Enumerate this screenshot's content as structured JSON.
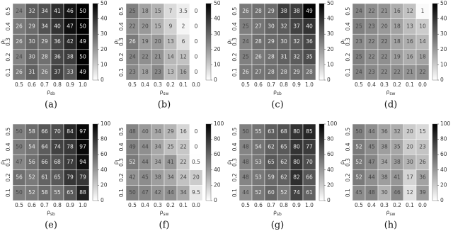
{
  "chart_data": [
    {
      "type": "heatmap",
      "panel_label": "(a)",
      "xlabel": "ρ",
      "xlabel_sub": "sb",
      "ylabel": "ρ",
      "ylabel_sub": "l",
      "x": [
        "0.5",
        "0.6",
        "0.7",
        "0.8",
        "0.9",
        "1.0"
      ],
      "y": [
        "0.5",
        "0.4",
        "0.3",
        "0.2",
        "0.1"
      ],
      "values": [
        [
          24,
          32,
          34,
          41,
          46,
          50
        ],
        [
          26,
          29,
          34,
          40,
          47,
          50
        ],
        [
          26,
          30,
          29,
          36,
          42,
          49
        ],
        [
          24,
          30,
          28,
          36,
          38,
          50
        ],
        [
          26,
          31,
          26,
          37,
          33,
          49
        ]
      ],
      "colorbar_lim": [
        0,
        50
      ],
      "colorbar_ticks": [
        0,
        10,
        20,
        30,
        40,
        50
      ]
    },
    {
      "type": "heatmap",
      "panel_label": "(b)",
      "xlabel": "ρ",
      "xlabel_sub": "sw",
      "ylabel": "ρ",
      "ylabel_sub": "l",
      "x": [
        "0.5",
        "0.4",
        "0.3",
        "0.2",
        "0.1",
        "0.0"
      ],
      "y": [
        "0.5",
        "0.4",
        "0.3",
        "0.2",
        "0.1"
      ],
      "values": [
        [
          25,
          18,
          15,
          7,
          3.5,
          0
        ],
        [
          22,
          20,
          15,
          9,
          2,
          0
        ],
        [
          26,
          19,
          20,
          13,
          6,
          0
        ],
        [
          24,
          22,
          21,
          14,
          12,
          0
        ],
        [
          23,
          18,
          23,
          13,
          16,
          0
        ]
      ],
      "colorbar_lim": [
        0,
        50
      ],
      "colorbar_ticks": [
        0,
        10,
        20,
        30,
        40,
        50
      ]
    },
    {
      "type": "heatmap",
      "panel_label": "(c)",
      "xlabel": "ρ",
      "xlabel_sub": "sb",
      "ylabel": "ρ",
      "ylabel_sub": "l",
      "x": [
        "0.5",
        "0.6",
        "0.7",
        "0.8",
        "0.9",
        "1.0"
      ],
      "y": [
        "0.5",
        "0.4",
        "0.3",
        "0.2",
        "0.1"
      ],
      "values": [
        [
          26,
          28,
          29,
          38,
          38,
          49
        ],
        [
          25,
          27,
          30,
          32,
          37,
          40
        ],
        [
          24,
          28,
          29,
          30,
          32,
          36
        ],
        [
          25,
          26,
          28,
          31,
          32,
          35
        ],
        [
          26,
          27,
          28,
          28,
          29,
          28
        ]
      ],
      "colorbar_lim": [
        0,
        50
      ],
      "colorbar_ticks": [
        0,
        10,
        20,
        30,
        40,
        50
      ]
    },
    {
      "type": "heatmap",
      "panel_label": "(d)",
      "xlabel": "ρ",
      "xlabel_sub": "sw",
      "ylabel": "ρ",
      "ylabel_sub": "l",
      "x": [
        "0.5",
        "0.4",
        "0.3",
        "0.2",
        "0.1",
        "0.0"
      ],
      "y": [
        "0.5",
        "0.4",
        "0.3",
        "0.2",
        "0.1"
      ],
      "values": [
        [
          24,
          22,
          21,
          16,
          12,
          1
        ],
        [
          25,
          23,
          20,
          18,
          13,
          10
        ],
        [
          23,
          22,
          22,
          18,
          16,
          14
        ],
        [
          25,
          22,
          22,
          19,
          16,
          18
        ],
        [
          24,
          23,
          22,
          22,
          21,
          22
        ]
      ],
      "colorbar_lim": [
        0,
        50
      ],
      "colorbar_ticks": [
        0,
        10,
        20,
        30,
        40,
        50
      ]
    },
    {
      "type": "heatmap",
      "panel_label": "(e)",
      "xlabel": "ρ",
      "xlabel_sub": "sb",
      "ylabel": "ρ",
      "ylabel_sub": "l",
      "x": [
        "0.5",
        "0.6",
        "0.7",
        "0.8",
        "0.9",
        "1.0"
      ],
      "y": [
        "0.5",
        "0.4",
        "0.3",
        "0.2",
        "0.1"
      ],
      "values": [
        [
          50,
          58,
          66,
          70,
          84,
          97
        ],
        [
          50,
          54,
          64,
          74,
          78,
          97
        ],
        [
          47,
          56,
          66,
          68,
          77,
          94
        ],
        [
          56,
          52,
          61,
          65,
          79,
          79
        ],
        [
          50,
          52,
          58,
          55,
          65,
          88
        ]
      ],
      "colorbar_lim": [
        0,
        100
      ],
      "colorbar_ticks": [
        0,
        20,
        40,
        60,
        80,
        100
      ]
    },
    {
      "type": "heatmap",
      "panel_label": "(f)",
      "xlabel": "ρ",
      "xlabel_sub": "sw",
      "ylabel": "ρ",
      "ylabel_sub": "l",
      "x": [
        "0.5",
        "0.4",
        "0.3",
        "0.2",
        "0.1",
        "0.0"
      ],
      "y": [
        "0.5",
        "0.4",
        "0.3",
        "0.2",
        "0.1"
      ],
      "values": [
        [
          48,
          40,
          34,
          29,
          16,
          0
        ],
        [
          49,
          44,
          34,
          25,
          22,
          0
        ],
        [
          52,
          44,
          34,
          41,
          22,
          0.5
        ],
        [
          42,
          45,
          38,
          34,
          24,
          20
        ],
        [
          50,
          47,
          42,
          44,
          34,
          9.5
        ]
      ],
      "colorbar_lim": [
        0,
        100
      ],
      "colorbar_ticks": [
        0,
        20,
        40,
        60,
        80,
        100
      ]
    },
    {
      "type": "heatmap",
      "panel_label": "(g)",
      "xlabel": "ρ",
      "xlabel_sub": "sb",
      "ylabel": "ρ",
      "ylabel_sub": "l",
      "x": [
        "0.5",
        "0.6",
        "0.7",
        "0.8",
        "0.9",
        "1.0"
      ],
      "y": [
        "0.5",
        "0.4",
        "0.3",
        "0.2",
        "0.1"
      ],
      "values": [
        [
          50,
          55,
          63,
          68,
          80,
          85
        ],
        [
          48,
          54,
          62,
          65,
          80,
          77
        ],
        [
          48,
          53,
          65,
          62,
          80,
          70
        ],
        [
          48,
          53,
          59,
          62,
          82,
          66
        ],
        [
          44,
          52,
          60,
          52,
          74,
          61
        ]
      ],
      "colorbar_lim": [
        0,
        100
      ],
      "colorbar_ticks": [
        0,
        20,
        40,
        60,
        80,
        100
      ]
    },
    {
      "type": "heatmap",
      "panel_label": "(h)",
      "xlabel": "ρ",
      "xlabel_sub": "sw",
      "ylabel": "ρ",
      "ylabel_sub": "l",
      "x": [
        "0.5",
        "0.4",
        "0.3",
        "0.2",
        "0.1",
        "0.0"
      ],
      "y": [
        "0.5",
        "0.4",
        "0.3",
        "0.2",
        "0.1"
      ],
      "values": [
        [
          50,
          44,
          36,
          32,
          20,
          15
        ],
        [
          52,
          45,
          38,
          35,
          20,
          23
        ],
        [
          52,
          47,
          34,
          38,
          30,
          26
        ],
        [
          52,
          44,
          38,
          41,
          17,
          36
        ],
        [
          45,
          48,
          30,
          46,
          12,
          39
        ]
      ],
      "colorbar_lim": [
        0,
        100
      ],
      "colorbar_ticks": [
        0,
        20,
        40,
        60,
        80,
        100
      ]
    }
  ]
}
